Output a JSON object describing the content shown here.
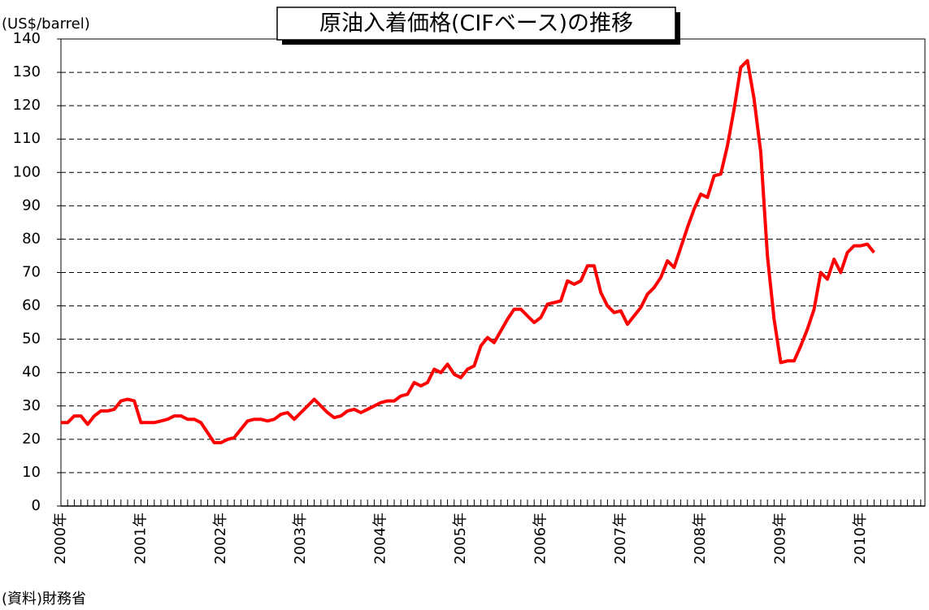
{
  "chart_data": {
    "type": "line",
    "title": "原油入着価格(CIFベース)の推移",
    "y_label": "(US$/barrel)",
    "source": "(資料)財務省",
    "categories": [
      "2000年",
      null,
      null,
      null,
      null,
      null,
      null,
      null,
      null,
      null,
      null,
      null,
      "2001年",
      null,
      null,
      null,
      null,
      null,
      null,
      null,
      null,
      null,
      null,
      null,
      "2002年",
      null,
      null,
      null,
      null,
      null,
      null,
      null,
      null,
      null,
      null,
      null,
      "2003年",
      null,
      null,
      null,
      null,
      null,
      null,
      null,
      null,
      null,
      null,
      null,
      "2004年",
      null,
      null,
      null,
      null,
      null,
      null,
      null,
      null,
      null,
      null,
      null,
      "2005年",
      null,
      null,
      null,
      null,
      null,
      null,
      null,
      null,
      null,
      null,
      null,
      "2006年",
      null,
      null,
      null,
      null,
      null,
      null,
      null,
      null,
      null,
      null,
      null,
      "2007年",
      null,
      null,
      null,
      null,
      null,
      null,
      null,
      null,
      null,
      null,
      null,
      "2008年",
      null,
      null,
      null,
      null,
      null,
      null,
      null,
      null,
      null,
      null,
      null,
      "2009年",
      null,
      null,
      null,
      null,
      null,
      null,
      null,
      null,
      null,
      null,
      null,
      "2010年",
      null,
      null,
      null,
      null,
      null,
      null,
      null,
      null,
      null
    ],
    "series": [
      {
        "name": "原油入着価格",
        "color": "#ff0000",
        "values": [
          25,
          25,
          27,
          27,
          24.5,
          27,
          28.5,
          28.5,
          29,
          31.5,
          32,
          31.5,
          25,
          25,
          25,
          25.5,
          26,
          27,
          27,
          26,
          26,
          25,
          22,
          19,
          19,
          20,
          20.5,
          23,
          25.5,
          26,
          26,
          25.5,
          26,
          27.5,
          28,
          26,
          28,
          30,
          32,
          30,
          28,
          26.5,
          27,
          28.5,
          29,
          28,
          29,
          30,
          31,
          31.5,
          31.5,
          33,
          33.5,
          37,
          36,
          37,
          41,
          40,
          42.5,
          39.5,
          38.5,
          41,
          42,
          48,
          50.5,
          49,
          52.5,
          56,
          59,
          59,
          57,
          55,
          56.5,
          60.5,
          61,
          61.5,
          67.5,
          66.5,
          67.5,
          72,
          72,
          64,
          60,
          58,
          58.5,
          54.5,
          57,
          59.5,
          63.5,
          65.5,
          68.5,
          73.5,
          71.5,
          77.5,
          83.5,
          89,
          93.5,
          92.5,
          99,
          99.5,
          108,
          119,
          131.5,
          133.5,
          122,
          106,
          75,
          56,
          43,
          43.5,
          43.5,
          48,
          53,
          59,
          70,
          68,
          74,
          70,
          76,
          78,
          78,
          78.5,
          76,
          null,
          null,
          null,
          null,
          null,
          null,
          null
        ]
      }
    ],
    "ylim": [
      0,
      140
    ],
    "yticks": [
      0,
      10,
      20,
      30,
      40,
      50,
      60,
      70,
      80,
      90,
      100,
      110,
      120,
      130,
      140
    ],
    "grid": true
  }
}
